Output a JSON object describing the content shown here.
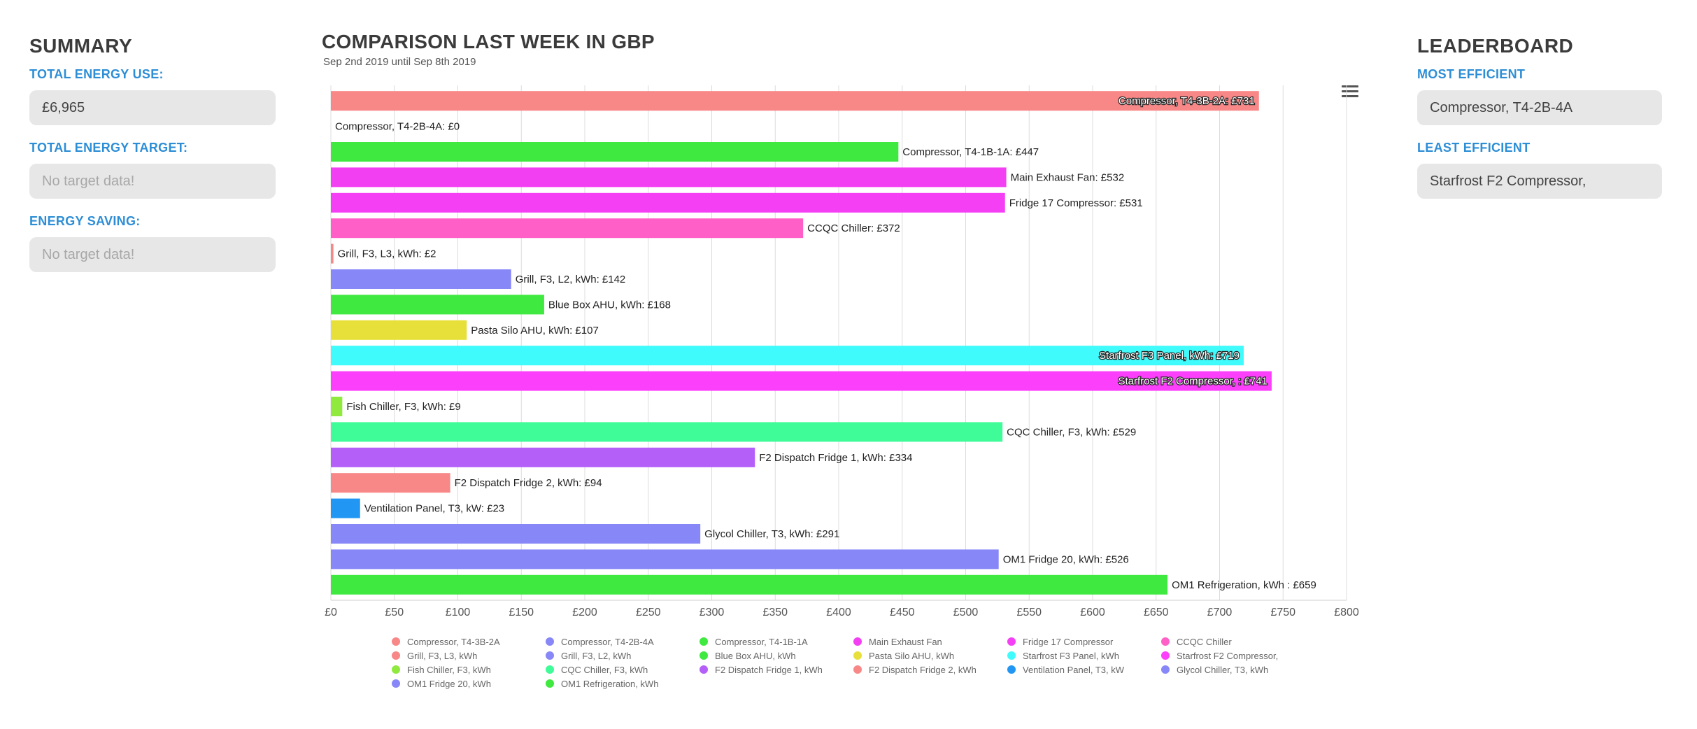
{
  "summary": {
    "title": "SUMMARY",
    "total_energy_use_label": "TOTAL ENERGY USE:",
    "total_energy_use_value": "£6,965",
    "total_energy_target_label": "TOTAL ENERGY TARGET:",
    "total_energy_target_value": "No target data!",
    "energy_saving_label": "ENERGY SAVING:",
    "energy_saving_value": "No target data!"
  },
  "leaderboard": {
    "title": "LEADERBOARD",
    "most_efficient_label": "MOST EFFICIENT",
    "most_efficient_value": "Compressor, T4-2B-4A",
    "least_efficient_label": "LEAST EFFICIENT",
    "least_efficient_value": "Starfrost F2 Compressor,"
  },
  "menu_icon": "hamburger-menu-icon",
  "chart_data": {
    "type": "bar",
    "orientation": "horizontal",
    "title": "COMPARISON LAST WEEK IN GBP",
    "subtitle": "Sep 2nd 2019 until Sep 8th 2019",
    "xlim": [
      0,
      800
    ],
    "grid": true,
    "legend_position": "bottom",
    "x_ticks": [
      "£0",
      "£50",
      "£100",
      "£150",
      "£200",
      "£250",
      "£300",
      "£350",
      "£400",
      "£450",
      "£500",
      "£550",
      "£600",
      "£650",
      "£700",
      "£750",
      "£800"
    ],
    "series": [
      {
        "name": "Compressor, T4-3B-2A",
        "value": 731,
        "label": "Compressor, T4-3B-2A: £731",
        "color": "#f88787"
      },
      {
        "name": "Compressor, T4-2B-4A",
        "value": 0,
        "label": "Compressor, T4-2B-4A: £0",
        "color": "#8787f8"
      },
      {
        "name": "Compressor, T4-1B-1A",
        "value": 447,
        "label": "Compressor, T4-1B-1A: £447",
        "color": "#3fe93f"
      },
      {
        "name": "Main Exhaust Fan",
        "value": 532,
        "label": "Main Exhaust Fan: £532",
        "color": "#f23ff2"
      },
      {
        "name": "Fridge 17 Compressor",
        "value": 531,
        "label": "Fridge 17 Compressor: £531",
        "color": "#f53ff5"
      },
      {
        "name": "CCQC Chiller",
        "value": 372,
        "label": "CCQC Chiller: £372",
        "color": "#ff5fc7"
      },
      {
        "name": "Grill, F3, L3, kWh",
        "value": 2,
        "label": "Grill, F3, L3, kWh: £2",
        "color": "#f88787"
      },
      {
        "name": "Grill, F3, L2, kWh",
        "value": 142,
        "label": "Grill, F3, L2, kWh: £142",
        "color": "#8787f8"
      },
      {
        "name": "Blue Box AHU, kWh",
        "value": 168,
        "label": "Blue Box AHU, kWh: £168",
        "color": "#3fe93f"
      },
      {
        "name": "Pasta Silo AHU, kWh",
        "value": 107,
        "label": "Pasta Silo AHU, kWh: £107",
        "color": "#e8e03a"
      },
      {
        "name": "Starfrost F3 Panel, kWh",
        "value": 719,
        "label": "Starfrost F3 Panel, kWh: £719",
        "color": "#3ffbfb"
      },
      {
        "name": "Starfrost F2 Compressor,",
        "value": 741,
        "label": "Starfrost F2 Compressor, : £741",
        "color": "#fb3ffb"
      },
      {
        "name": "Fish Chiller, F3, kWh",
        "value": 9,
        "label": "Fish Chiller, F3, kWh: £9",
        "color": "#8fe93f"
      },
      {
        "name": "CQC Chiller, F3, kWh",
        "value": 529,
        "label": "CQC Chiller, F3, kWh: £529",
        "color": "#3ffb98"
      },
      {
        "name": "F2 Dispatch Fridge 1, kWh",
        "value": 334,
        "label": "F2 Dispatch Fridge 1, kWh: £334",
        "color": "#b45ff8"
      },
      {
        "name": "F2 Dispatch Fridge 2, kWh",
        "value": 94,
        "label": "F2 Dispatch Fridge 2, kWh: £94",
        "color": "#f88787"
      },
      {
        "name": "Ventilation Panel, T3, kW",
        "value": 23,
        "label": "Ventilation Panel, T3, kW: £23",
        "color": "#2196f3"
      },
      {
        "name": "Glycol Chiller, T3, kWh",
        "value": 291,
        "label": "Glycol Chiller, T3, kWh: £291",
        "color": "#8787f8"
      },
      {
        "name": "OM1 Fridge 20, kWh",
        "value": 526,
        "label": "OM1 Fridge 20, kWh: £526",
        "color": "#8787f8"
      },
      {
        "name": "OM1 Refrigeration, kWh",
        "value": 659,
        "label": "OM1 Refrigeration, kWh : £659",
        "color": "#3fe93f"
      }
    ]
  }
}
